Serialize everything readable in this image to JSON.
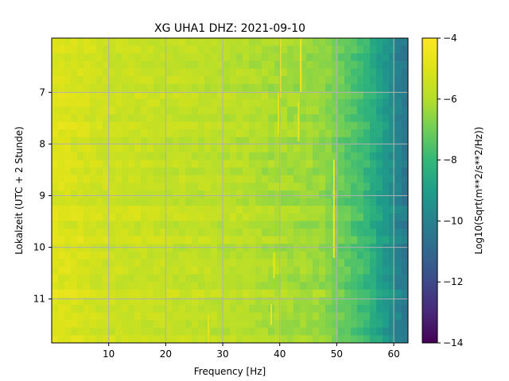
{
  "chart_data": {
    "type": "heatmap",
    "title": "XG UHA1  DHZ: 2021-09-10",
    "xlabel": "Frequency [Hz]",
    "ylabel": "Lokalzeit (UTC + 2 Stunde)",
    "colorbar_label": "Log10(Sqrt(m**2/s**2/Hz))",
    "colormap": "viridis",
    "xlim": [
      0.0,
      62.5
    ],
    "ylim": [
      5.95,
      11.85
    ],
    "y_inverted": true,
    "clim": [
      -14,
      -4
    ],
    "x_ticks": [
      10,
      20,
      30,
      40,
      50,
      60
    ],
    "y_ticks": [
      7,
      8,
      9,
      10,
      11
    ],
    "colorbar_ticks": [
      -4,
      -6,
      -8,
      -10,
      -12,
      -14
    ],
    "grid": true,
    "grid_color": "#b0b0b0",
    "spectral_lines": [
      {
        "freq_hz": 40.1,
        "time_range": [
          5.95,
          7.1
        ],
        "level": -4.4
      },
      {
        "freq_hz": 43.7,
        "time_range": [
          5.95,
          7.0
        ],
        "level": -4.3
      },
      {
        "freq_hz": 39.8,
        "time_range": [
          7.0,
          7.8
        ],
        "level": -4.8
      },
      {
        "freq_hz": 43.3,
        "time_range": [
          7.2,
          7.95
        ],
        "level": -4.7
      },
      {
        "freq_hz": 49.5,
        "time_range": [
          8.3,
          10.2
        ],
        "level": -4.3
      },
      {
        "freq_hz": 39.0,
        "time_range": [
          10.1,
          10.6
        ],
        "level": -4.6
      },
      {
        "freq_hz": 38.5,
        "time_range": [
          11.1,
          11.5
        ],
        "level": -4.5
      },
      {
        "freq_hz": 27.5,
        "time_range": [
          11.3,
          11.85
        ],
        "level": -4.8
      }
    ]
  }
}
